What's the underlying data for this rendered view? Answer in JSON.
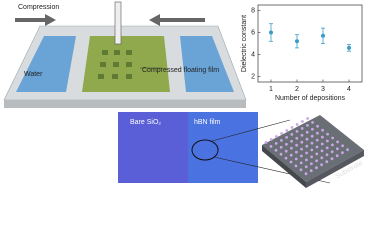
{
  "chart_data": {
    "type": "scatter",
    "ylabel": "Dielectric constant",
    "xlabel": "Number of depositions",
    "x": [
      1,
      2,
      3,
      4
    ],
    "values": [
      6.0,
      5.2,
      5.7,
      4.6
    ],
    "errors": [
      0.8,
      0.6,
      0.7,
      0.3
    ],
    "color": "#3a9dc8",
    "xlim": [
      0.5,
      4.5
    ],
    "xticks": [
      1,
      2,
      3,
      4
    ],
    "ylim": [
      1.5,
      8.5
    ],
    "yticks": [
      2,
      4,
      6,
      8
    ]
  },
  "diagram": {
    "compression": "Compression",
    "water": "Water",
    "film": "Compressed floating film",
    "bare": "Bare SiO₂",
    "hbn": "hBN film",
    "substrate": "Substrate"
  }
}
